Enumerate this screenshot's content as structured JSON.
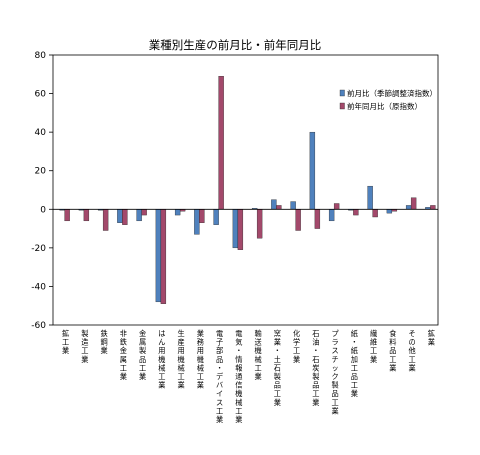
{
  "chart_data": {
    "type": "bar",
    "title": "業種別生産の前月比・前年同月比",
    "xlabel": "",
    "ylabel": "",
    "ylim": [
      -60,
      80
    ],
    "yticks": [
      80,
      60,
      40,
      20,
      0,
      -20,
      -40,
      -60
    ],
    "grid": false,
    "legend_position": "right",
    "categories": [
      "鉱工業",
      "製造工業",
      "鉄鋼業",
      "非鉄金属工業",
      "金属製品工業",
      "はん用機械工業",
      "生産用機械工業",
      "業務用機械工業",
      "電子部品・デバイス工業",
      "電気・情報通信機械工業",
      "輸送機械工業",
      "窯業・土石製品工業",
      "化学工業",
      "石油・石炭製品工業",
      "プラスチック製品工業",
      "紙・紙加工品工業",
      "繊維工業",
      "食料品工業",
      "その他工業",
      "鉱業"
    ],
    "series": [
      {
        "name": "前月比（季節調整済指数）",
        "color": "#4f81bd",
        "values": [
          -0.5,
          -0.5,
          -0.5,
          -7,
          -6,
          -48,
          -3,
          -13,
          -8,
          -20,
          0.5,
          5,
          4,
          40,
          -6,
          -0.5,
          12,
          -2,
          2,
          1
        ]
      },
      {
        "name": "前年同月比（原指数）",
        "color": "#a3496b",
        "values": [
          -6,
          -6,
          -11,
          -8,
          -3,
          -49,
          -1,
          -7,
          69,
          -21,
          -15,
          2,
          -11,
          -10,
          3,
          -3,
          -4,
          -1,
          6,
          2
        ]
      }
    ]
  }
}
